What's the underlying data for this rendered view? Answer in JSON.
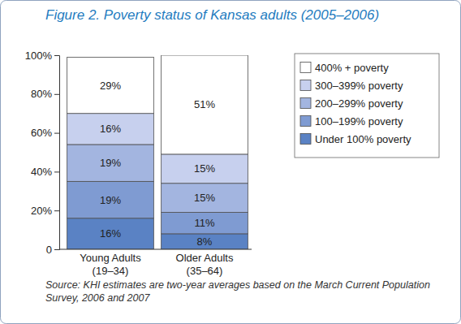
{
  "chart_data": {
    "type": "bar",
    "stacked": true,
    "data_labels": true,
    "grid": false,
    "legend": "right",
    "title": "Figure 2. Poverty status of Kansas adults (2005–2006)",
    "source": "Source: KHI estimates are two-year averages based on the March Current Population Survey, 2006 and 2007",
    "categories": [
      "Young Adults (19–34)",
      "Older Adults (35–64)"
    ],
    "ylim": [
      0,
      100
    ],
    "yticks": [
      0,
      {
        "value": 20,
        "label": "20%"
      },
      {
        "value": 40,
        "label": "40%"
      },
      {
        "value": 60,
        "label": "60%"
      },
      {
        "value": 80,
        "label": "80%"
      },
      {
        "value": 100,
        "label": "100%"
      }
    ],
    "series": [
      {
        "name": "Under 100% poverty",
        "color": "#5a82c4",
        "values": [
          16,
          8
        ],
        "value_labels": [
          "16%",
          "8%"
        ]
      },
      {
        "name": "100–199% poverty",
        "color": "#7f9bd2",
        "values": [
          19,
          11
        ],
        "value_labels": [
          "19%",
          "11%"
        ]
      },
      {
        "name": "200–299% poverty",
        "color": "#a3b5e0",
        "values": [
          19,
          15
        ],
        "value_labels": [
          "19%",
          "15%"
        ]
      },
      {
        "name": "300–399% poverty",
        "color": "#c7d0ee",
        "values": [
          16,
          15
        ],
        "value_labels": [
          "16%",
          "15%"
        ]
      },
      {
        "name": "400% + poverty",
        "color": "#ffffff",
        "values": [
          29,
          51
        ],
        "value_labels": [
          "29%",
          "51%"
        ]
      }
    ]
  }
}
